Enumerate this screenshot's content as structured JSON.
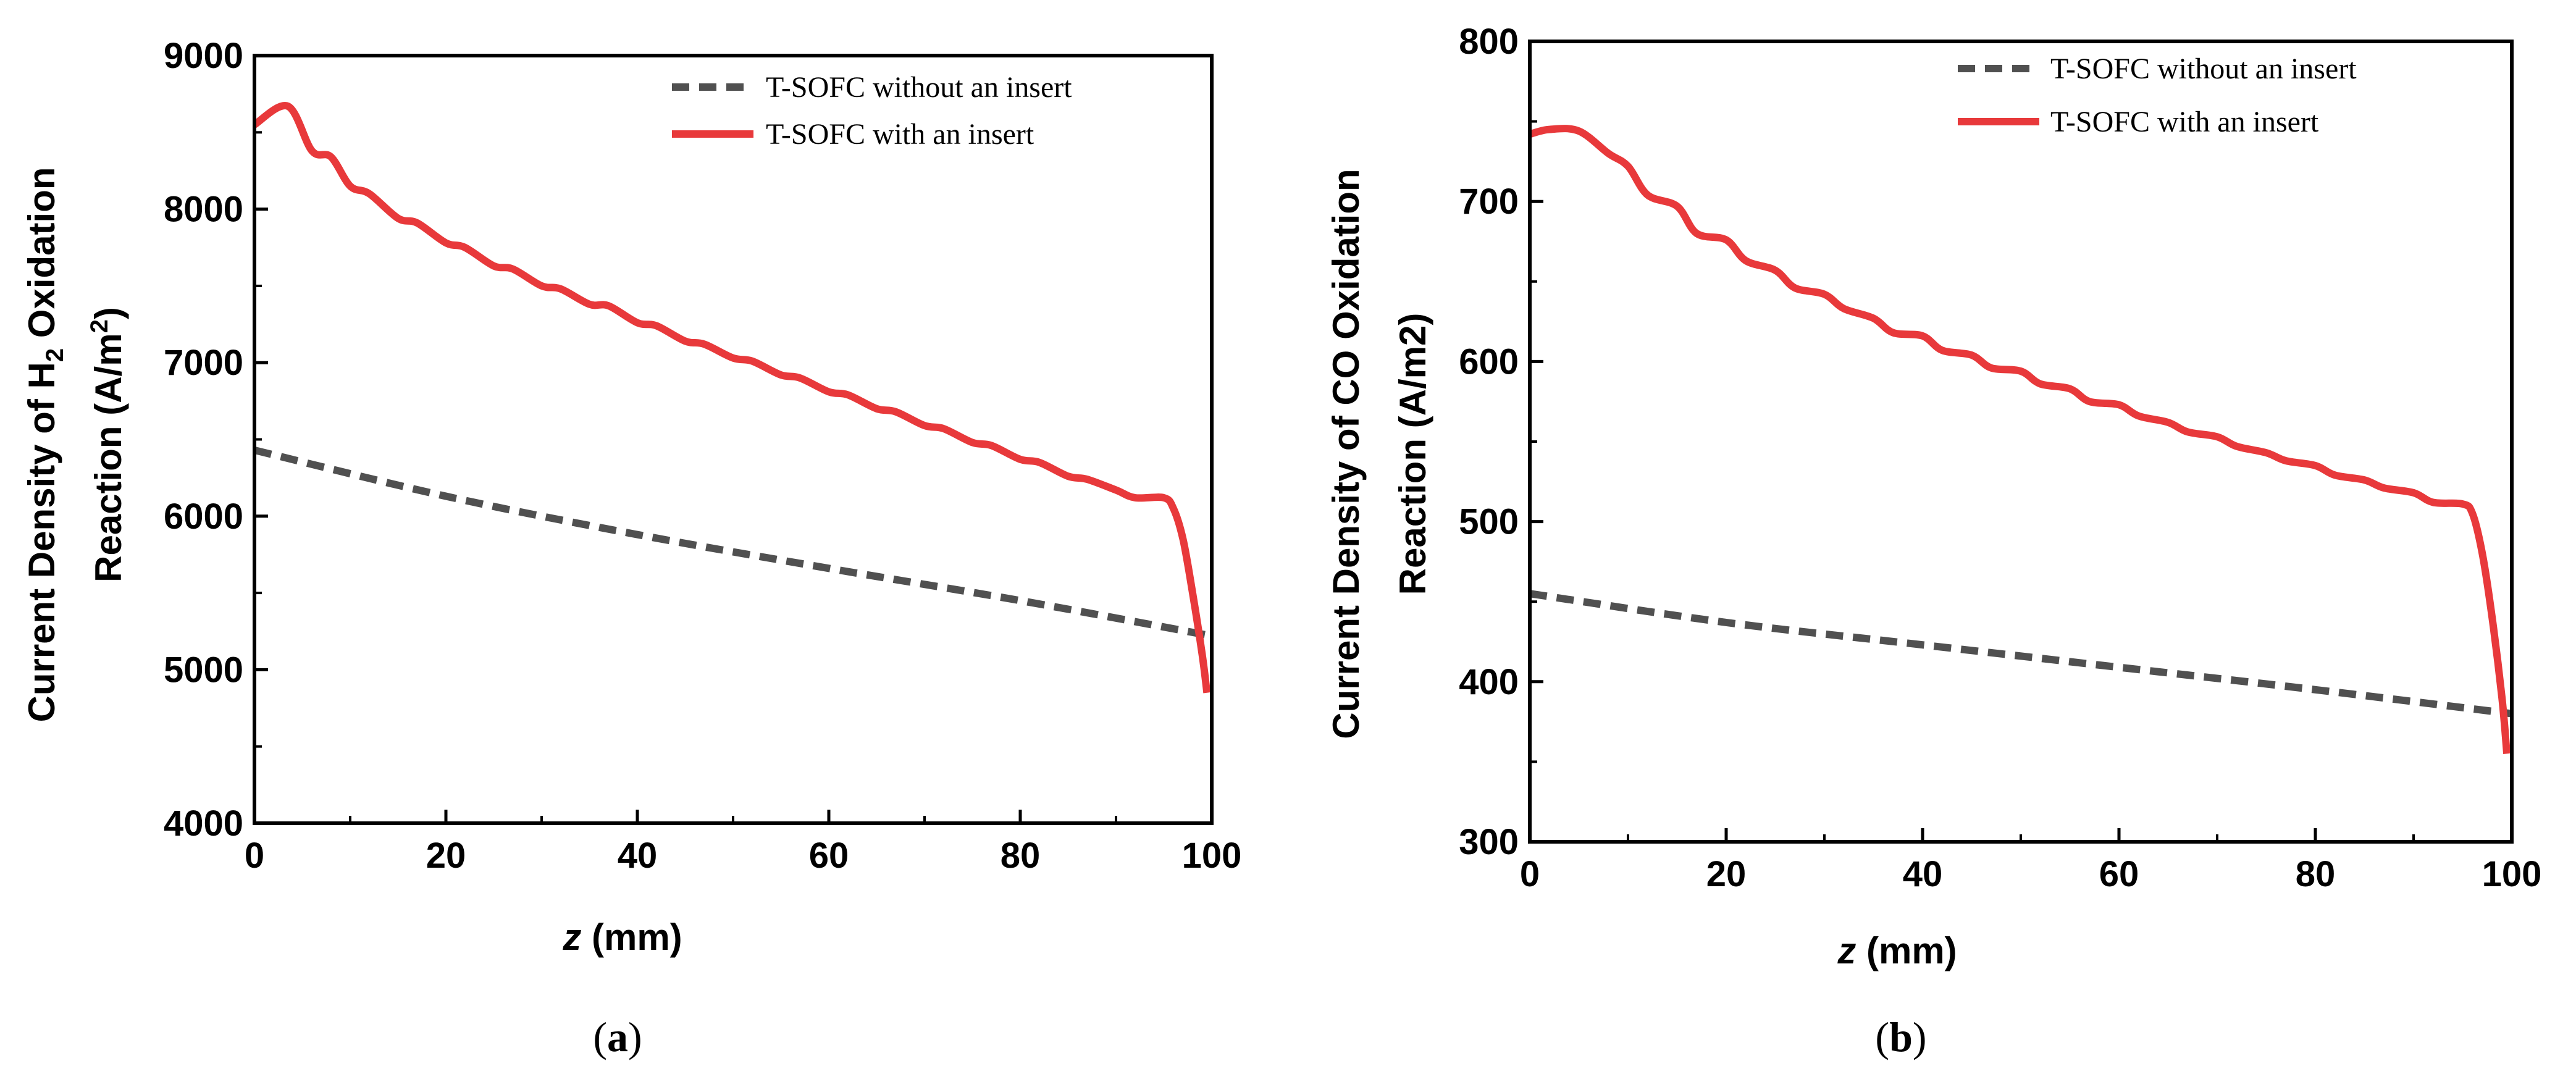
{
  "chart_data": [
    {
      "type": "line",
      "panel_label": "(a)",
      "panel_letter": "a",
      "xlabel_var": "z",
      "xlabel_unit": " (mm)",
      "ylabel_line1_pre": "Current Density of H",
      "ylabel_line1_sub": "2",
      "ylabel_line1_post": " Oxidation",
      "ylabel_line2_pre": "Reaction (A/m",
      "ylabel_line2_sup": "2",
      "ylabel_line2_post": ")",
      "xlim": [
        0,
        100
      ],
      "ylim": [
        4000,
        9000
      ],
      "xticks": [
        0,
        20,
        40,
        60,
        80,
        100
      ],
      "yticks": [
        4000,
        5000,
        6000,
        7000,
        8000,
        9000
      ],
      "legend_position": "top-right",
      "series": [
        {
          "name": "T-SOFC without an insert",
          "style": "dashed",
          "color": "#505050",
          "x": [
            0,
            20,
            40,
            60,
            80,
            100
          ],
          "y": [
            6430,
            6130,
            5880,
            5660,
            5450,
            5220
          ]
        },
        {
          "name": "T-SOFC with an insert",
          "style": "solid",
          "color": "#e8393b",
          "x": [
            0,
            3.5,
            6,
            8,
            10,
            12,
            15,
            17,
            20,
            22,
            25,
            27,
            30,
            32,
            35,
            37,
            40,
            42,
            45,
            47,
            50,
            52,
            55,
            57,
            60,
            62,
            65,
            67,
            70,
            72,
            75,
            77,
            80,
            82,
            85,
            87,
            90,
            92,
            95,
            96,
            97,
            98,
            99,
            99.5
          ],
          "y": [
            8550,
            8670,
            8380,
            8340,
            8150,
            8100,
            7940,
            7910,
            7780,
            7750,
            7630,
            7610,
            7500,
            7480,
            7380,
            7370,
            7260,
            7240,
            7140,
            7120,
            7030,
            7010,
            6920,
            6900,
            6810,
            6790,
            6700,
            6680,
            6590,
            6570,
            6480,
            6460,
            6370,
            6350,
            6260,
            6240,
            6170,
            6120,
            6120,
            6050,
            5850,
            5500,
            5100,
            4850
          ]
        }
      ]
    },
    {
      "type": "line",
      "panel_label": "(b)",
      "panel_letter": "b",
      "xlabel_var": "z",
      "xlabel_unit": " (mm)",
      "ylabel_line1": "Current Density of CO Oxidation",
      "ylabel_line2": "Reaction (A/m2)",
      "xlim": [
        0,
        100
      ],
      "ylim": [
        300,
        800
      ],
      "xticks": [
        0,
        20,
        40,
        60,
        80,
        100
      ],
      "yticks": [
        300,
        400,
        500,
        600,
        700,
        800
      ],
      "legend_position": "top-right",
      "series": [
        {
          "name": "T-SOFC without an insert",
          "style": "dashed",
          "color": "#505050",
          "x": [
            0,
            20,
            40,
            60,
            80,
            100
          ],
          "y": [
            455,
            437,
            423,
            409,
            395,
            380
          ]
        },
        {
          "name": "T-SOFC with an insert",
          "style": "solid",
          "color": "#e8393b",
          "x": [
            0,
            2,
            5,
            8,
            10,
            12,
            15,
            17,
            20,
            22,
            25,
            27,
            30,
            32,
            35,
            37,
            40,
            42,
            45,
            47,
            50,
            52,
            55,
            57,
            60,
            62,
            65,
            67,
            70,
            72,
            75,
            77,
            80,
            82,
            85,
            87,
            90,
            92,
            95,
            96,
            97,
            98,
            99,
            99.5
          ],
          "y": [
            742,
            745,
            744,
            730,
            722,
            704,
            697,
            680,
            676,
            663,
            657,
            646,
            642,
            633,
            627,
            618,
            616,
            607,
            604,
            596,
            594,
            586,
            583,
            575,
            573,
            566,
            562,
            556,
            553,
            547,
            543,
            538,
            535,
            529,
            526,
            521,
            518,
            512,
            511,
            505,
            480,
            440,
            390,
            355
          ]
        }
      ]
    }
  ]
}
